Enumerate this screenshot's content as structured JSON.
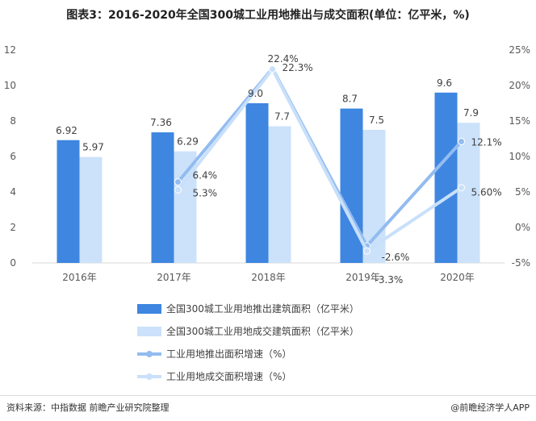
{
  "title": "图表3：2016-2020年全国300城工业用地推出与成交面积(单位：亿平米，%)",
  "footer": {
    "source": "资料来源：中指数据 前瞻产业研究院整理",
    "brand": "@前瞻经济学人APP"
  },
  "colors": {
    "bar_listed": "#3E86E0",
    "bar_sold": "#CCE2FA",
    "line_listed": "#93BCF0",
    "line_sold": "#C9E0FA"
  },
  "chart_data": {
    "type": "bar",
    "categories": [
      "2016年",
      "2017年",
      "2018年",
      "2019年",
      "2020年"
    ],
    "series": [
      {
        "name": "全国300城工业用地推出建筑面积（亿平米）",
        "kind": "bar",
        "axis": "left",
        "values": [
          6.92,
          7.36,
          9.0,
          8.7,
          9.6
        ],
        "labels": [
          "6.92",
          "7.36",
          "9.0",
          "8.7",
          "9.6"
        ]
      },
      {
        "name": "全国300城工业用地成交建筑面积（亿平米）",
        "kind": "bar",
        "axis": "left",
        "values": [
          5.97,
          6.29,
          7.7,
          7.5,
          7.9
        ],
        "labels": [
          "5.97",
          "6.29",
          "7.7",
          "7.5",
          "7.9"
        ]
      },
      {
        "name": "工业用地推出面积增速（%）",
        "kind": "line",
        "axis": "right",
        "values": [
          null,
          6.4,
          22.4,
          -2.6,
          12.1
        ],
        "labels": [
          "",
          "6.4%",
          "22.4%",
          "-2.6%",
          "12.1%"
        ]
      },
      {
        "name": "工业用地成交面积增速（%）",
        "kind": "line",
        "axis": "right",
        "values": [
          null,
          5.3,
          22.3,
          -3.3,
          5.6
        ],
        "labels": [
          "",
          "5.3%",
          "22.3%",
          "-3.3%",
          "5.60%"
        ]
      }
    ],
    "y_left": {
      "min": 0,
      "max": 12,
      "ticks": [
        "0",
        "2",
        "4",
        "6",
        "8",
        "10",
        "12"
      ]
    },
    "y_right": {
      "min": -5,
      "max": 25,
      "ticks": [
        "-5%",
        "0%",
        "5%",
        "10%",
        "15%",
        "20%",
        "25%"
      ]
    },
    "grid": false,
    "legend_position": "bottom"
  }
}
